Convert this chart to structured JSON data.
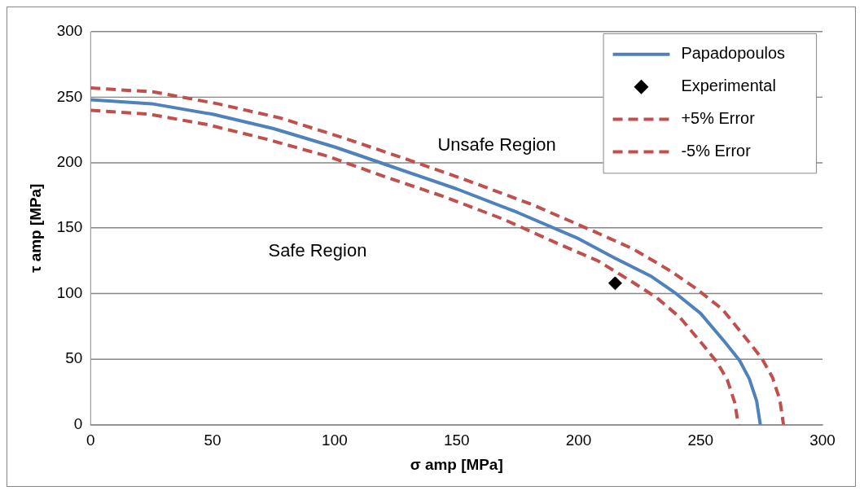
{
  "chart_data": {
    "type": "line",
    "xlabel": "σ amp [MPa]",
    "ylabel": "τ amp [MPa]",
    "xlim": [
      0,
      300
    ],
    "xticks": [
      0,
      50,
      100,
      150,
      200,
      250,
      300
    ],
    "ylim": [
      0,
      300
    ],
    "yticks": [
      0,
      50,
      100,
      150,
      200,
      250,
      300
    ],
    "grid": "y",
    "legend": "top right",
    "annotations": [
      "Unsafe Region",
      "Safe Region"
    ],
    "series": [
      {
        "name": "Papadopoulos",
        "type": "line",
        "color": "#4f81bd",
        "line_style": "solid",
        "marker": "none",
        "x": [
          0,
          25,
          50,
          75,
          100,
          125,
          150,
          175,
          200,
          215,
          230,
          240,
          250,
          260,
          266,
          270,
          273,
          274.5
        ],
        "values": [
          248,
          245,
          237,
          226,
          212,
          196,
          180,
          162,
          142,
          127,
          113,
          100,
          85,
          63,
          49,
          35,
          18,
          0
        ]
      },
      {
        "name": "Experimental",
        "type": "scatter",
        "color": "#000000",
        "marker": "diamond",
        "x": [
          215
        ],
        "values": [
          108
        ]
      },
      {
        "name": "+5% Error",
        "type": "line",
        "color": "#c0504d",
        "line_style": "dashed",
        "marker": "none",
        "x": [
          0,
          26,
          52,
          78,
          103.5,
          129,
          155,
          181,
          207,
          222.5,
          238,
          248.5,
          259,
          269,
          275,
          279.5,
          282.5,
          284
        ],
        "values": [
          257,
          254,
          245,
          234,
          219,
          203,
          186,
          168,
          147,
          134,
          117,
          103.5,
          88,
          65,
          51,
          36,
          19,
          0
        ]
      },
      {
        "name": "-5% Error",
        "type": "line",
        "color": "#c0504d",
        "line_style": "dashed",
        "marker": "none",
        "x": [
          0,
          24,
          48,
          72,
          97,
          121,
          145,
          169,
          193,
          208,
          222,
          232,
          241.5,
          251,
          257,
          261,
          264,
          265.5
        ],
        "values": [
          240,
          237,
          229,
          218,
          205,
          189,
          174,
          157,
          137,
          125,
          109,
          97,
          82,
          61,
          47,
          34,
          17,
          0
        ]
      }
    ]
  }
}
